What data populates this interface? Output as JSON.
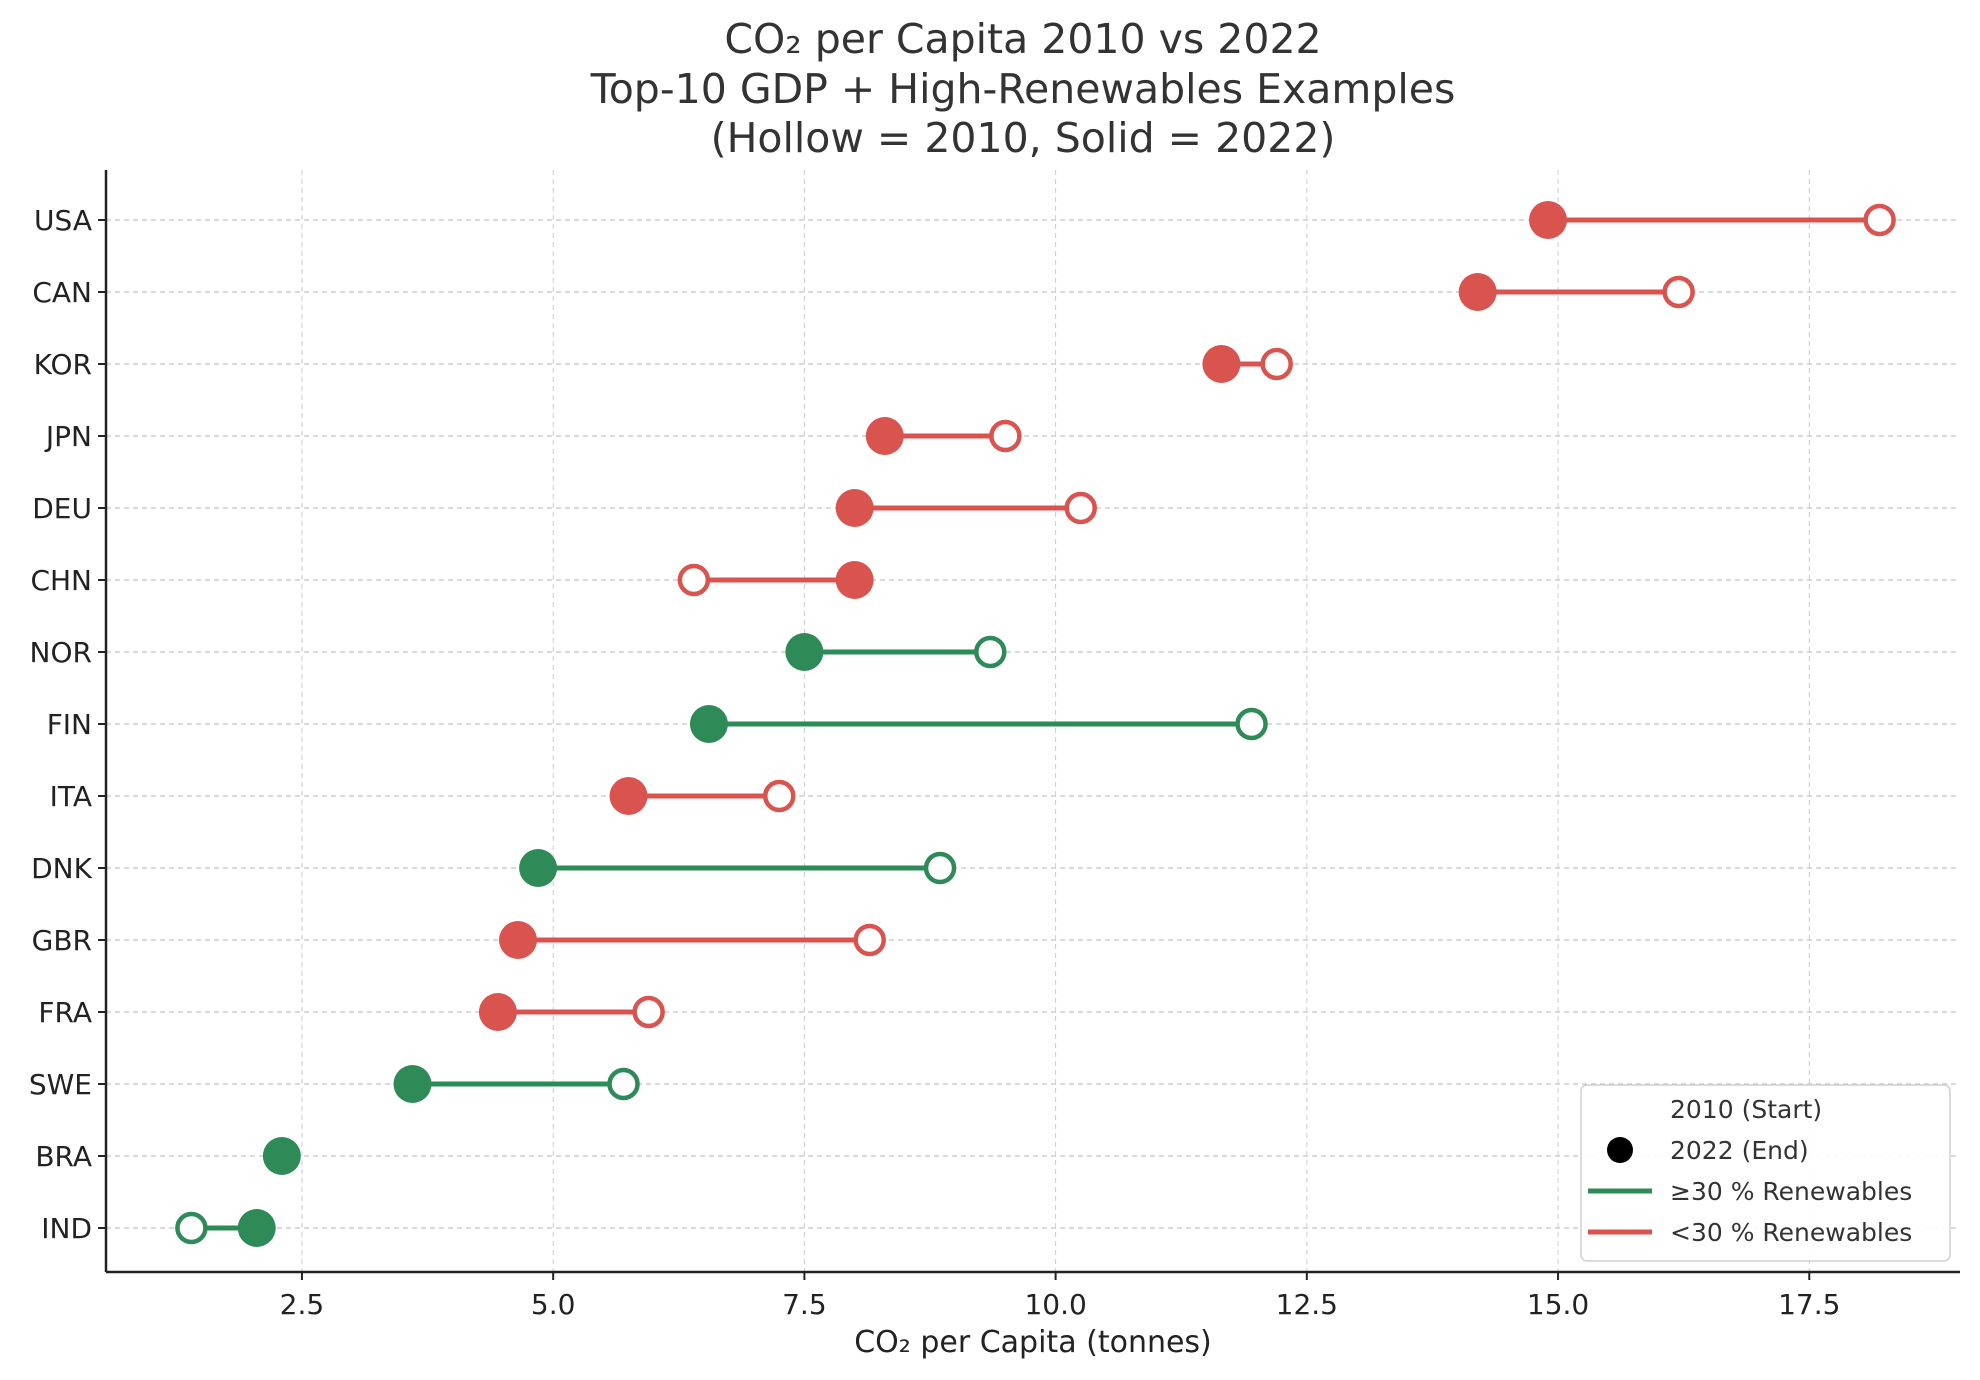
{
  "chart_data": {
    "type": "dumbbell",
    "title_lines": [
      "CO₂ per Capita 2010 vs 2022",
      "Top-10 GDP + High-Renewables Examples",
      "(Hollow = 2010, Solid = 2022)"
    ],
    "xlabel": "CO₂ per Capita (tonnes)",
    "ylabel": "",
    "xlim": [
      0.55,
      19.0
    ],
    "xticks": [
      2.5,
      5.0,
      7.5,
      10.0,
      12.5,
      15.0,
      17.5
    ],
    "xtick_labels": [
      "2.5",
      "5.0",
      "7.5",
      "10.0",
      "12.5",
      "15.0",
      "17.5"
    ],
    "grid": true,
    "legend_position": "lower right",
    "colors": {
      "high_renewables": "#2e8b57",
      "low_renewables": "#d9534f"
    },
    "legend": {
      "start_label": "2010 (Start)",
      "end_label": "2022 (End)",
      "high_label": "≥30 % Renewables",
      "low_label": "<30 % Renewables"
    },
    "rows": [
      {
        "country": "USA",
        "y2010": 18.2,
        "y2022": 14.9,
        "group": "low"
      },
      {
        "country": "CAN",
        "y2010": 16.2,
        "y2022": 14.2,
        "group": "low"
      },
      {
        "country": "KOR",
        "y2010": 12.2,
        "y2022": 11.65,
        "group": "low"
      },
      {
        "country": "JPN",
        "y2010": 9.5,
        "y2022": 8.3,
        "group": "low"
      },
      {
        "country": "DEU",
        "y2010": 10.25,
        "y2022": 8.0,
        "group": "low"
      },
      {
        "country": "CHN",
        "y2010": 6.4,
        "y2022": 8.0,
        "group": "low"
      },
      {
        "country": "NOR",
        "y2010": 9.35,
        "y2022": 7.5,
        "group": "high"
      },
      {
        "country": "FIN",
        "y2010": 11.95,
        "y2022": 6.55,
        "group": "high"
      },
      {
        "country": "ITA",
        "y2010": 7.25,
        "y2022": 5.75,
        "group": "low"
      },
      {
        "country": "DNK",
        "y2010": 8.85,
        "y2022": 4.85,
        "group": "high"
      },
      {
        "country": "GBR",
        "y2010": 8.15,
        "y2022": 4.65,
        "group": "low"
      },
      {
        "country": "FRA",
        "y2010": 5.95,
        "y2022": 4.45,
        "group": "low"
      },
      {
        "country": "SWE",
        "y2010": 5.7,
        "y2022": 3.6,
        "group": "high"
      },
      {
        "country": "BRA",
        "y2010": 2.3,
        "y2022": 2.3,
        "group": "high"
      },
      {
        "country": "IND",
        "y2010": 1.4,
        "y2022": 2.05,
        "group": "high"
      }
    ]
  }
}
